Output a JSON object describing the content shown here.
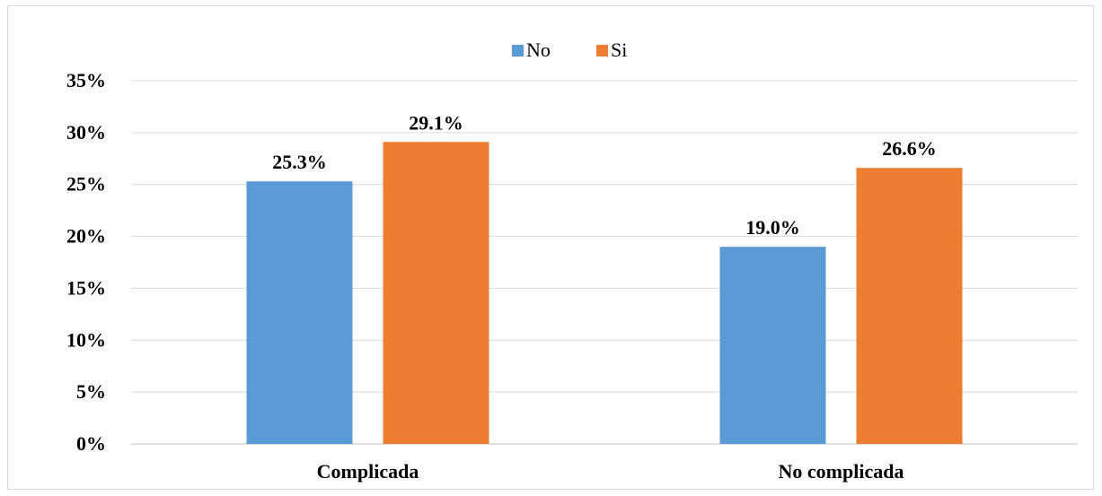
{
  "chart_data": {
    "type": "bar",
    "categories": [
      "Complicada",
      "No complicada"
    ],
    "series": [
      {
        "name": "No",
        "values": [
          25.3,
          19.0
        ],
        "labels": [
          "25.3%",
          "19.0%"
        ],
        "color": "#5b9bd5"
      },
      {
        "name": "Si",
        "values": [
          29.1,
          26.6
        ],
        "labels": [
          "29.1%",
          "26.6%"
        ],
        "color": "#ed7d31"
      }
    ],
    "ylim": [
      0,
      35
    ],
    "yticks": [
      "0%",
      "5%",
      "10%",
      "15%",
      "20%",
      "25%",
      "30%",
      "35%"
    ],
    "grid": true,
    "legend_position": "top-center",
    "title": "",
    "xlabel": "",
    "ylabel": ""
  }
}
